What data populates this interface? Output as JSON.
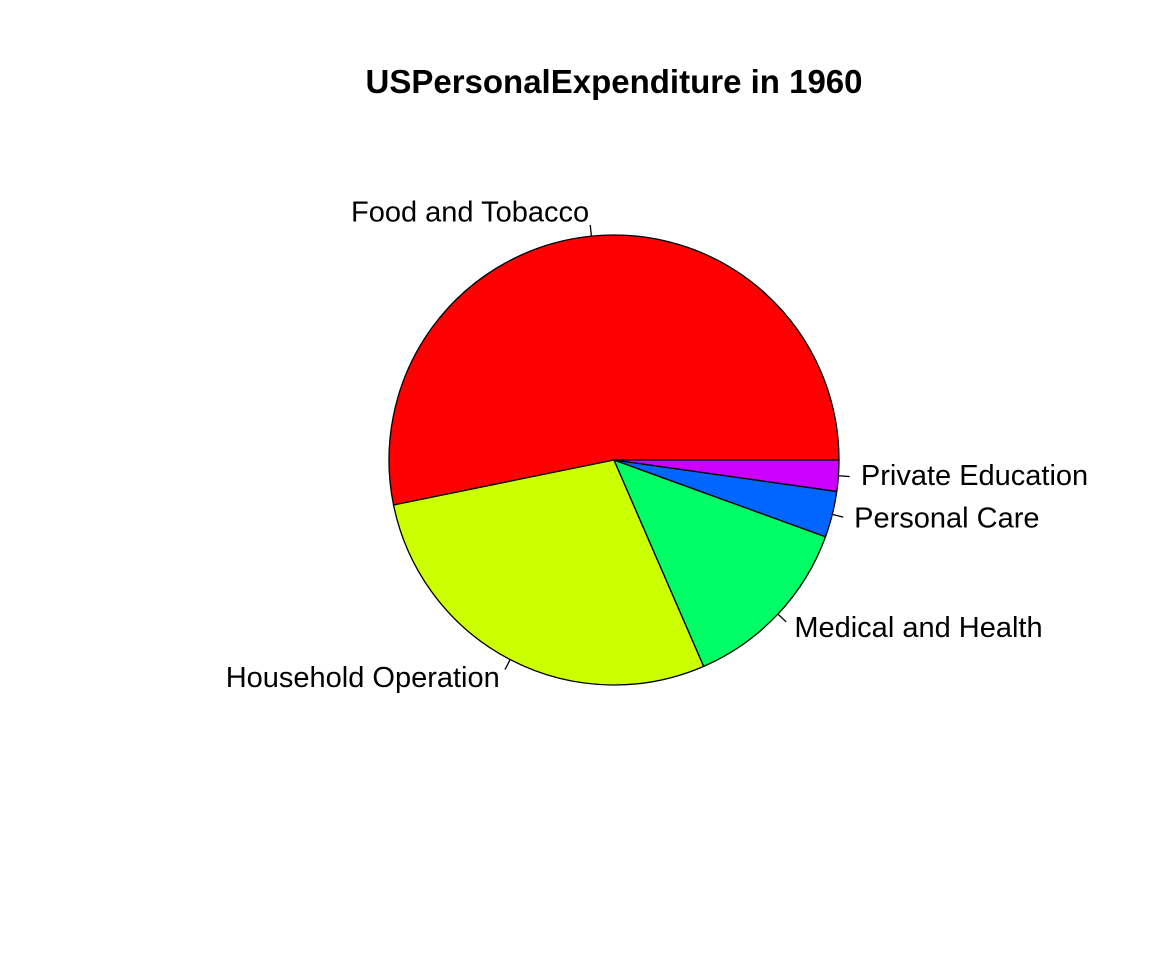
{
  "chart_data": {
    "type": "pie",
    "title": "USPersonalExpenditure in 1960",
    "categories": [
      "Food and Tobacco",
      "Household Operation",
      "Medical and Health",
      "Personal Care",
      "Private Education"
    ],
    "values": [
      86.8,
      46.2,
      21.1,
      5.4,
      3.64
    ],
    "colors": [
      "#FF0000",
      "#CCFF00",
      "#00FF66",
      "#0066FF",
      "#CC00FF"
    ],
    "direction": "counterclockwise",
    "start_angle_deg": 0,
    "border_color": "#000000",
    "legend": "none"
  }
}
